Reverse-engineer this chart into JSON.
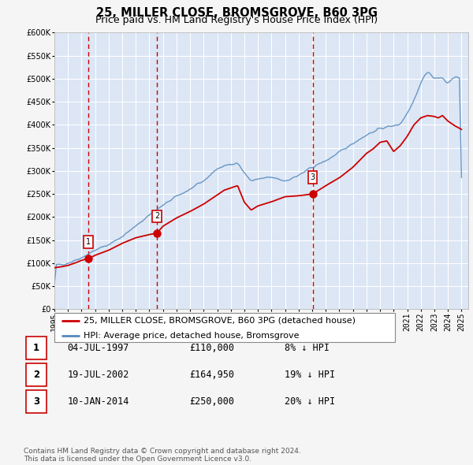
{
  "title": "25, MILLER CLOSE, BROMSGROVE, B60 3PG",
  "subtitle": "Price paid vs. HM Land Registry's House Price Index (HPI)",
  "ylim": [
    0,
    600000
  ],
  "yticks": [
    0,
    50000,
    100000,
    150000,
    200000,
    250000,
    300000,
    350000,
    400000,
    450000,
    500000,
    550000,
    600000
  ],
  "xlim_start": 1995.0,
  "xlim_end": 2025.5,
  "xticks": [
    1995,
    1996,
    1997,
    1998,
    1999,
    2000,
    2001,
    2002,
    2003,
    2004,
    2005,
    2006,
    2007,
    2008,
    2009,
    2010,
    2011,
    2012,
    2013,
    2014,
    2015,
    2016,
    2017,
    2018,
    2019,
    2020,
    2021,
    2022,
    2023,
    2024,
    2025
  ],
  "fig_bg_color": "#f5f5f5",
  "plot_bg_color": "#dce6f5",
  "grid_color": "#ffffff",
  "red_line_color": "#cc0000",
  "blue_line_color": "#5588bb",
  "sale_points": [
    {
      "year": 1997.505,
      "value": 110000,
      "label": "1"
    },
    {
      "year": 2002.546,
      "value": 164950,
      "label": "2"
    },
    {
      "year": 2014.027,
      "value": 250000,
      "label": "3"
    }
  ],
  "vline_years": [
    1997.505,
    2002.546,
    2014.027
  ],
  "legend_entries": [
    "25, MILLER CLOSE, BROMSGROVE, B60 3PG (detached house)",
    "HPI: Average price, detached house, Bromsgrove"
  ],
  "table_entries": [
    {
      "num": "1",
      "date": "04-JUL-1997",
      "price": "£110,000",
      "hpi": "8% ↓ HPI"
    },
    {
      "num": "2",
      "date": "19-JUL-2002",
      "price": "£164,950",
      "hpi": "19% ↓ HPI"
    },
    {
      "num": "3",
      "date": "10-JAN-2014",
      "price": "£250,000",
      "hpi": "20% ↓ HPI"
    }
  ],
  "footnote": "Contains HM Land Registry data © Crown copyright and database right 2024.\nThis data is licensed under the Open Government Licence v3.0.",
  "title_fontsize": 10.5,
  "subtitle_fontsize": 9,
  "tick_fontsize": 7,
  "legend_fontsize": 8,
  "table_fontsize": 8.5,
  "footnote_fontsize": 6.5
}
